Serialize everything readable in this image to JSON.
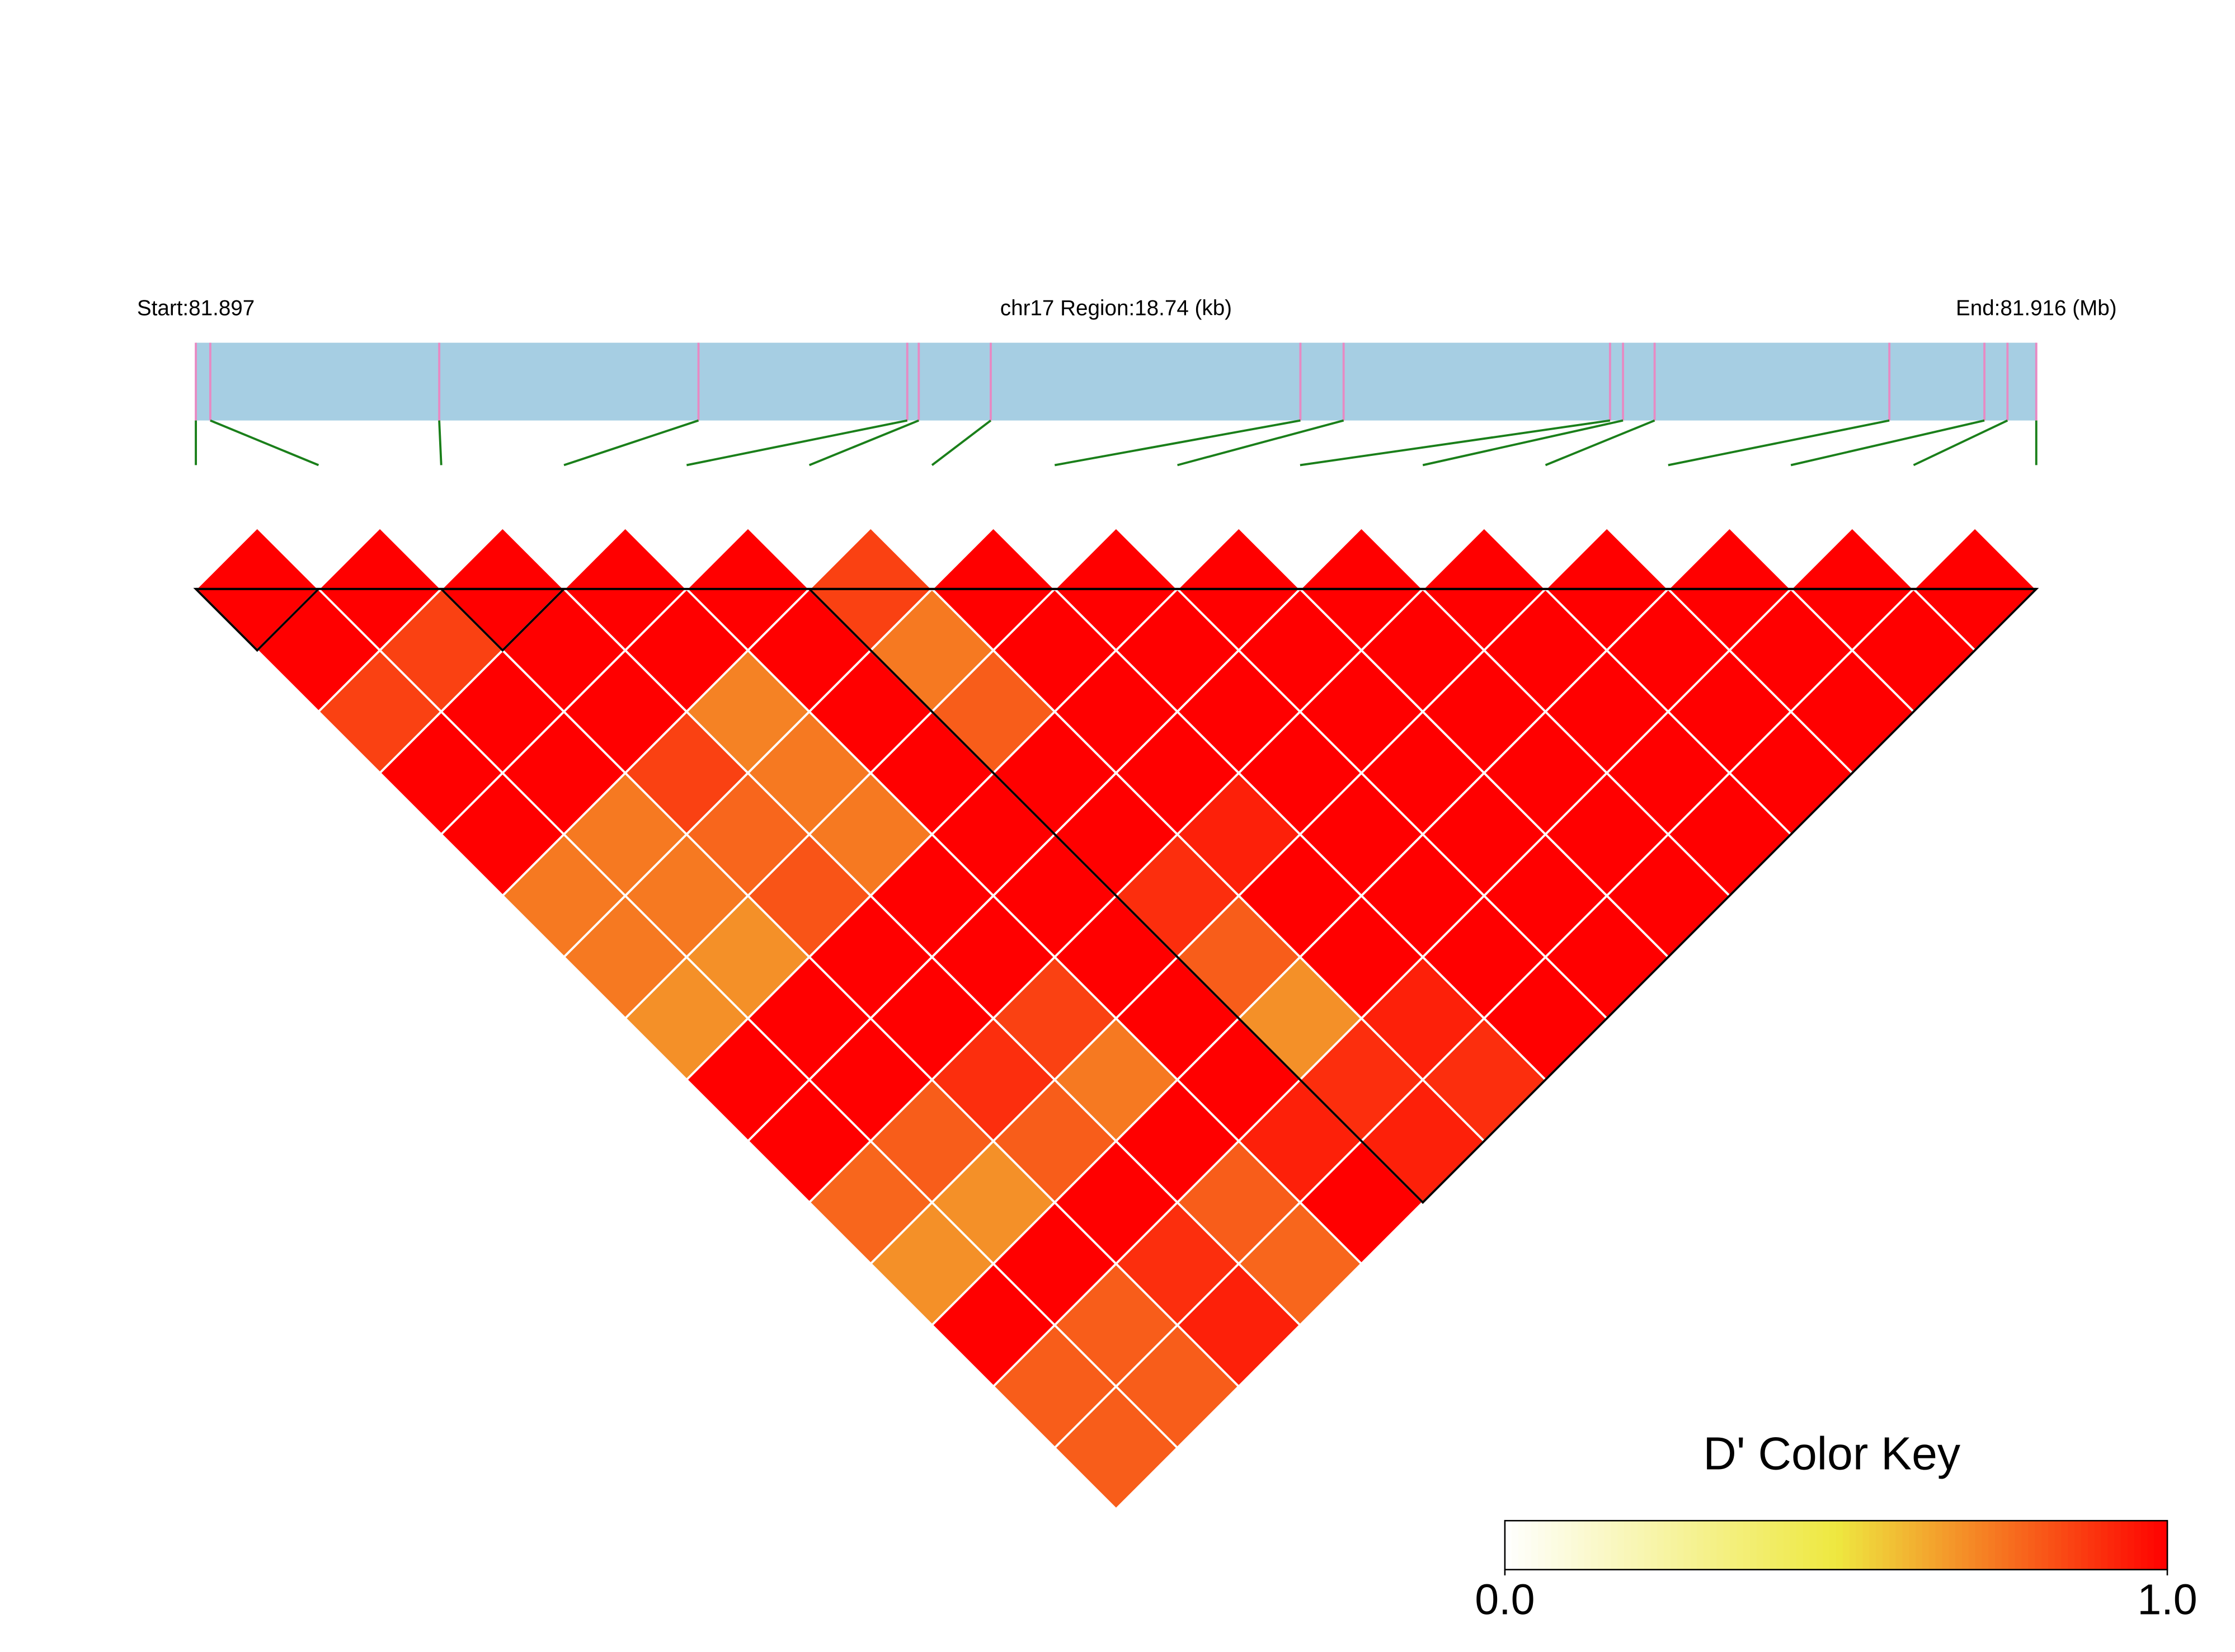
{
  "chart_data": {
    "type": "ld_heatmap",
    "region_start_label": "Start:81.897",
    "region_label": "chr17 Region:18.74 (kb)",
    "region_end_label": "End:81.916 (Mb)",
    "xlim": [
      0,
      18.74
    ],
    "positions": [
      0,
      0.147,
      2.478,
      5.118,
      7.244,
      7.361,
      8.094,
      11.247,
      11.687,
      14.4,
      14.532,
      14.854,
      17.244,
      18.212,
      18.447,
      18.74
    ],
    "values": [
      [
        1,
        1,
        0.86,
        1,
        1,
        0.74,
        0.74,
        0.69,
        1,
        1,
        0.78,
        0.69,
        1,
        0.8,
        0.8
      ],
      [
        1,
        0.86,
        1,
        1,
        0.74,
        0.74,
        0.69,
        1,
        1,
        0.8,
        0.69,
        1,
        0.8,
        0.8
      ],
      [
        1,
        1,
        1,
        0.86,
        0.78,
        0.82,
        1,
        1,
        0.9,
        0.8,
        1,
        0.9,
        0.93
      ],
      [
        1,
        1,
        0.72,
        0.74,
        0.74,
        1,
        1,
        0.86,
        0.74,
        1,
        0.8,
        0.78
      ],
      [
        1,
        1,
        1,
        1,
        1,
        1,
        1,
        1,
        1,
        0.93,
        1
      ],
      [
        0.86,
        0.74,
        0.8,
        1,
        1,
        0.9,
        0.8,
        0.69,
        0.9,
        0.93
      ],
      [
        1,
        1,
        1,
        1,
        0.93,
        1,
        1,
        0.93,
        0.9
      ],
      [
        1,
        1,
        1,
        1,
        1,
        1,
        1,
        1
      ],
      [
        1,
        1,
        1,
        1,
        1,
        1,
        1
      ],
      [
        1,
        1,
        1,
        1,
        1,
        1
      ],
      [
        1,
        1,
        1,
        1,
        1
      ],
      [
        1,
        1,
        1,
        1
      ],
      [
        1,
        1,
        1
      ],
      [
        1,
        1
      ],
      [
        1
      ]
    ],
    "blocks": [
      [
        0,
        1
      ],
      [
        2,
        3
      ],
      [
        5,
        15
      ]
    ],
    "colorbar_title": "D' Color Key",
    "colorbar_lim": [
      0,
      1
    ],
    "colorbar_ticks": [
      {
        "value": 0,
        "label": "0.0"
      },
      {
        "value": 1,
        "label": "1.0"
      }
    ]
  }
}
